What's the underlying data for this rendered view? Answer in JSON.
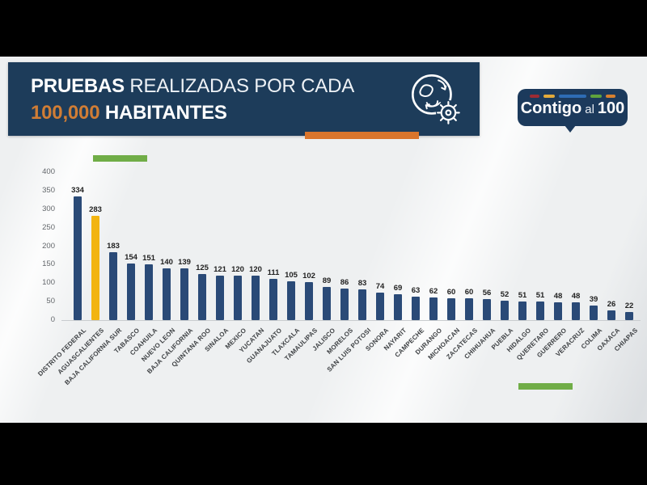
{
  "header": {
    "title_bold_1": "PRUEBAS",
    "title_rest_1": " REALIZADAS POR CADA",
    "title_accent_2": "100,000",
    "title_bold_2": " HABITANTES",
    "icon": "globe-virus-icon"
  },
  "logo": {
    "word1": "Contigo",
    "word2": "al",
    "word3": "100",
    "dash_colors": [
      "#9e2b33",
      "#e2aa3b",
      "#2e6cb4",
      "#5fa33d",
      "#d8802f"
    ]
  },
  "colors": {
    "header_bg": "#1d3c5a",
    "orange_accent": "#d9752c",
    "green_accent": "#70ad47",
    "title_accent": "#d07d35"
  },
  "chart_data": {
    "type": "bar",
    "title": "Pruebas realizadas por cada 100,000 habitantes",
    "categories": [
      "DISTRITO FEDERAL",
      "AGUASCALIENTES",
      "BAJA CALIFORNIA SUR",
      "TABASCO",
      "COAHUILA",
      "NUEVO LEON",
      "BAJA CALIFORNIA",
      "QUINTANA ROO",
      "SINALOA",
      "MEXICO",
      "YUCATAN",
      "GUANAJUATO",
      "TLAXCALA",
      "TAMAULIPAS",
      "JALISCO",
      "MORELOS",
      "SAN LUIS POTOSI",
      "SONORA",
      "NAYARIT",
      "CAMPECHE",
      "DURANGO",
      "MICHOACAN",
      "ZACATECAS",
      "CHIHUAHUA",
      "PUEBLA",
      "HIDALGO",
      "QUERETARO",
      "GUERRERO",
      "VERACRUZ",
      "COLIMA",
      "OAXACA",
      "CHIAPAS"
    ],
    "values": [
      334,
      283,
      183,
      154,
      151,
      140,
      139,
      125,
      121,
      120,
      120,
      111,
      105,
      102,
      89,
      86,
      83,
      74,
      69,
      63,
      62,
      60,
      60,
      56,
      52,
      51,
      51,
      48,
      48,
      39,
      26,
      22
    ],
    "bar_color": "#2a4a77",
    "highlight_index": 1,
    "highlight_color": "#f2b411",
    "value_labels": true,
    "xlabel": "",
    "ylabel": "",
    "ylim": [
      0,
      400
    ],
    "yticks": [
      0,
      50,
      100,
      150,
      200,
      250,
      300,
      350,
      400
    ],
    "grid": false,
    "legend": false
  }
}
